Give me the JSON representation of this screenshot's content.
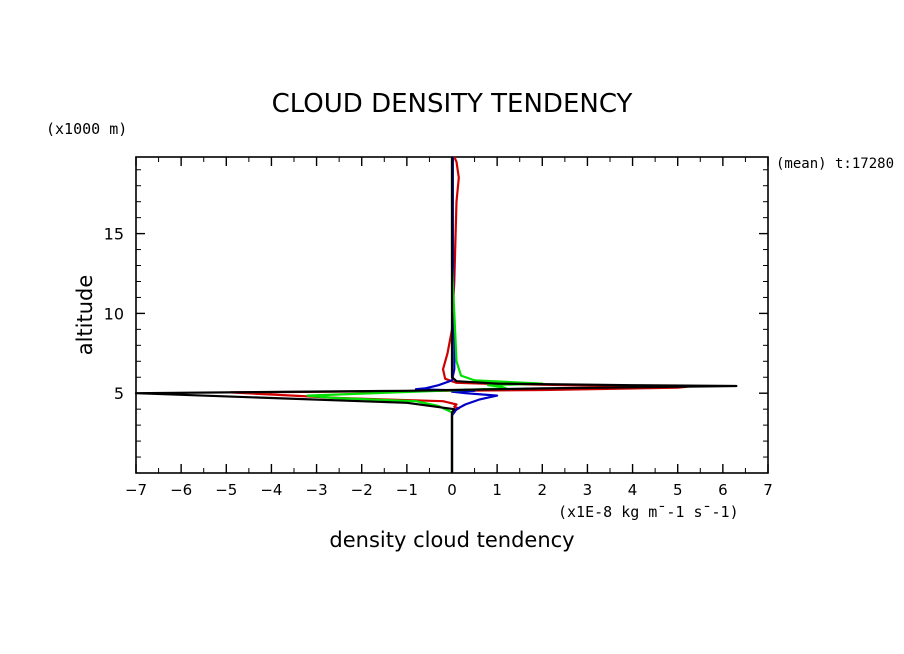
{
  "chart_data": {
    "type": "line",
    "title": "CLOUD DENSITY TENDENCY",
    "xlabel": "density cloud tendency",
    "x_units": "(x1E-8 kg m¯-1 s¯-1)",
    "ylabel": "altitude",
    "y_units": "(x1000 m)",
    "annotation": "(mean) t:17280",
    "xlim": [
      -7,
      7
    ],
    "ylim": [
      0,
      19.8
    ],
    "x_ticks": [
      -7,
      -6,
      -5,
      -4,
      -3,
      -2,
      -1,
      0,
      1,
      2,
      3,
      4,
      5,
      6,
      7
    ],
    "x_tick_labels": [
      "−7",
      "−6",
      "−5",
      "−4",
      "−3",
      "−2",
      "−1",
      "0",
      "1",
      "2",
      "3",
      "4",
      "5",
      "6",
      "7"
    ],
    "y_ticks": [
      5,
      10,
      15
    ],
    "y_tick_labels": [
      "5",
      "10",
      "15"
    ],
    "grid": false,
    "series": [
      {
        "color": "#d00000",
        "points": [
          [
            0,
            0
          ],
          [
            0,
            3.7
          ],
          [
            0.05,
            3.9
          ],
          [
            0.15,
            4.05
          ],
          [
            0.05,
            4.15
          ],
          [
            0.1,
            4.3
          ],
          [
            -0.2,
            4.5
          ],
          [
            -2.5,
            4.7
          ],
          [
            -4.9,
            5.05
          ],
          [
            2.0,
            5.2
          ],
          [
            5.0,
            5.35
          ],
          [
            5.2,
            5.4
          ],
          [
            2.5,
            5.5
          ],
          [
            0.7,
            5.6
          ],
          [
            0.1,
            5.65
          ],
          [
            -0.15,
            5.9
          ],
          [
            -0.2,
            6.5
          ],
          [
            -0.1,
            7.5
          ],
          [
            0,
            9
          ],
          [
            0.05,
            12
          ],
          [
            0.08,
            15
          ],
          [
            0.1,
            17
          ],
          [
            0.15,
            18.5
          ],
          [
            0.1,
            19.5
          ],
          [
            0.05,
            19.8
          ]
        ]
      },
      {
        "color": "#0000c8",
        "points": [
          [
            0,
            0
          ],
          [
            0,
            3.6
          ],
          [
            0.1,
            4.0
          ],
          [
            0.3,
            4.3
          ],
          [
            0.6,
            4.6
          ],
          [
            1.0,
            4.85
          ],
          [
            0.3,
            5.0
          ],
          [
            0,
            5.1
          ],
          [
            0.5,
            5.15
          ],
          [
            -0.8,
            5.25
          ],
          [
            -0.6,
            5.3
          ],
          [
            -0.3,
            5.5
          ],
          [
            0,
            5.8
          ],
          [
            0.05,
            6.5
          ],
          [
            0.05,
            8
          ],
          [
            0.03,
            11
          ],
          [
            0.02,
            15
          ],
          [
            0.02,
            19.8
          ]
        ]
      },
      {
        "color": "#00e000",
        "points": [
          [
            0,
            0
          ],
          [
            0,
            3.8
          ],
          [
            -0.3,
            4.2
          ],
          [
            -0.8,
            4.5
          ],
          [
            -2.6,
            4.7
          ],
          [
            -3.2,
            4.85
          ],
          [
            1.2,
            5.3
          ],
          [
            1.1,
            5.4
          ],
          [
            0.8,
            5.5
          ],
          [
            2.0,
            5.6
          ],
          [
            0.5,
            5.8
          ],
          [
            0.2,
            6.1
          ],
          [
            0.1,
            7
          ],
          [
            0.05,
            10
          ],
          [
            0,
            13
          ],
          [
            0,
            16
          ],
          [
            0,
            19.8
          ]
        ]
      },
      {
        "color": "#000000",
        "points": [
          [
            0,
            0
          ],
          [
            0,
            3.8
          ],
          [
            0.05,
            4.0
          ],
          [
            -1,
            4.4
          ],
          [
            -4,
            4.7
          ],
          [
            -7,
            5.0
          ],
          [
            -1,
            5.15
          ],
          [
            0,
            5.2
          ],
          [
            2.0,
            5.3
          ],
          [
            6.3,
            5.45
          ],
          [
            4.0,
            5.5
          ],
          [
            1.0,
            5.6
          ],
          [
            0.1,
            5.75
          ],
          [
            0,
            6.0
          ],
          [
            0,
            7
          ],
          [
            0,
            9
          ],
          [
            0,
            13
          ],
          [
            0,
            19.8
          ]
        ]
      }
    ]
  }
}
